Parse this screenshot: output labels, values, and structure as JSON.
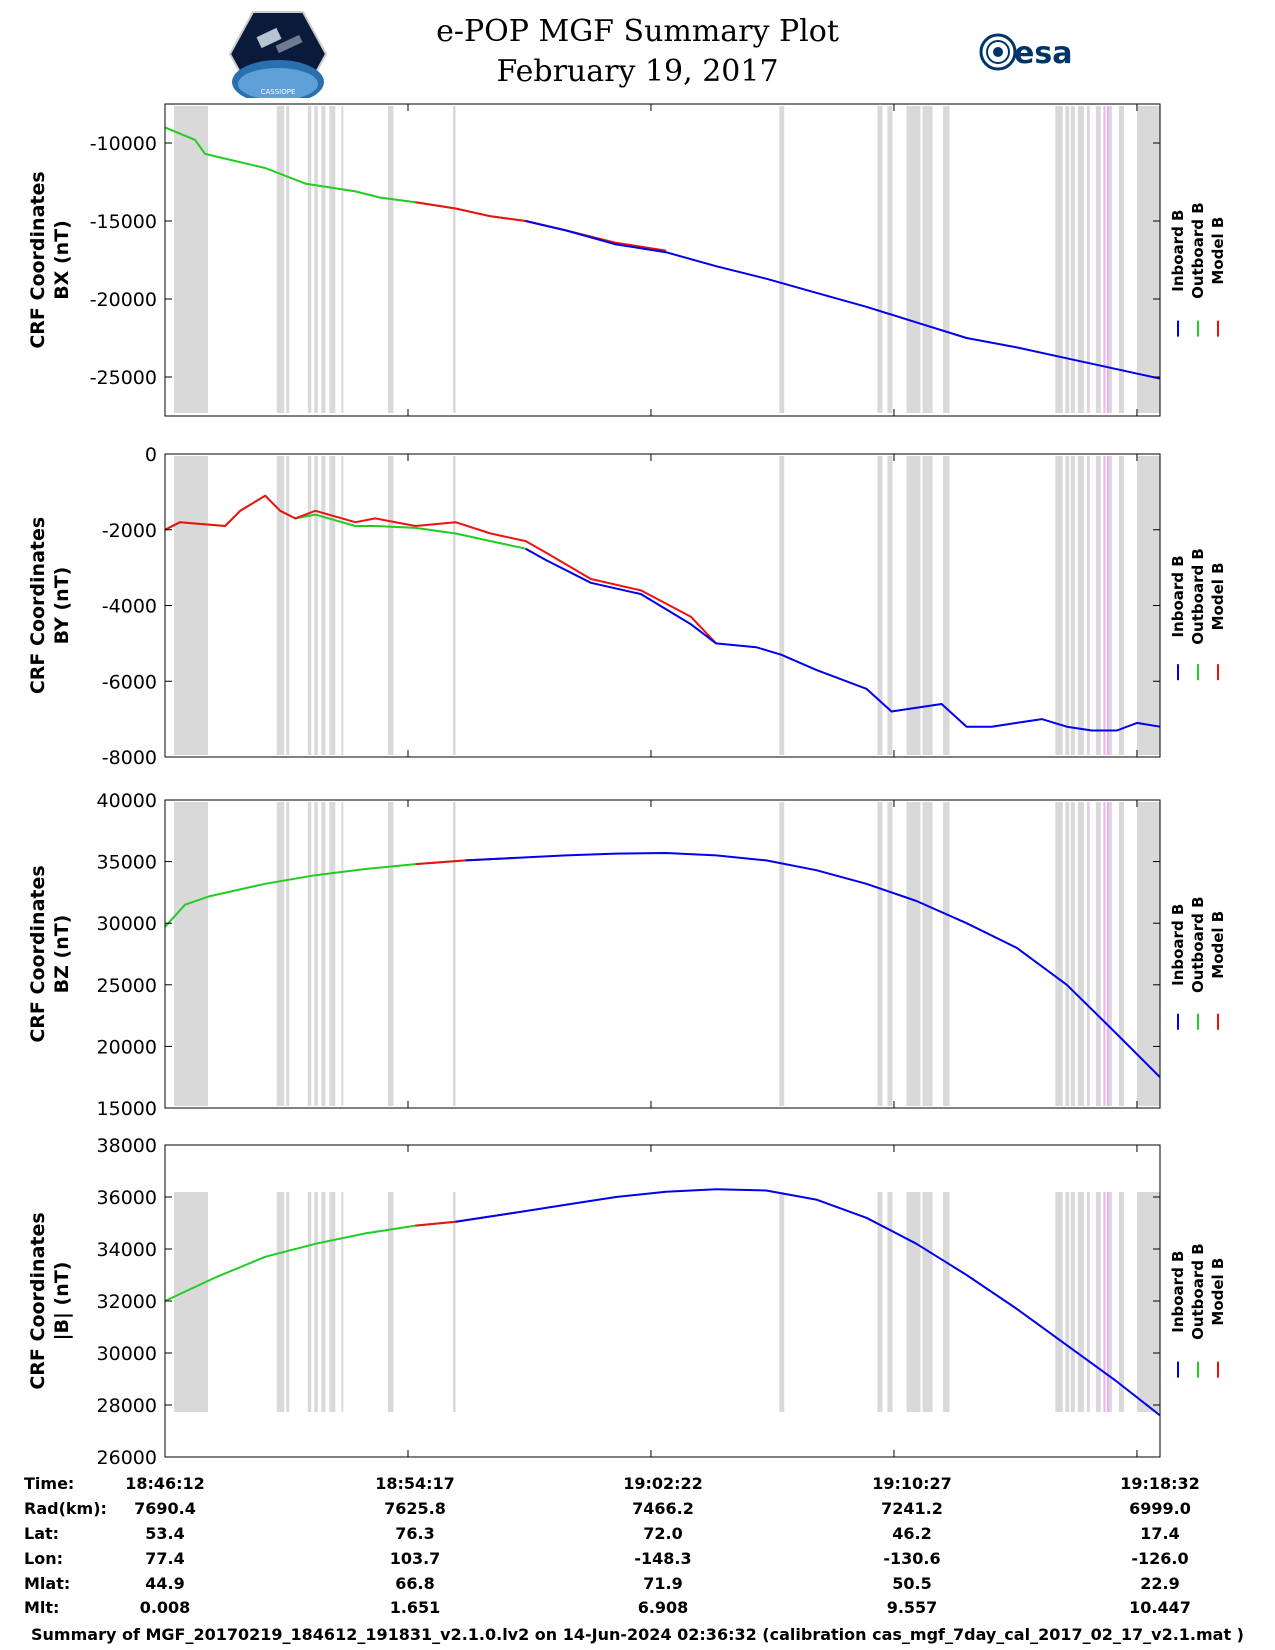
{
  "header": {
    "title": "e-POP MGF Summary Plot",
    "date": "February 19, 2017",
    "logo_left": "CASSIOPE",
    "logo_right": "esa"
  },
  "colors": {
    "inboard": "#0000ee",
    "outboard": "#22cc22",
    "model": "#ee1111",
    "gap_shading": "#d9d9d9",
    "pink_marker": "#f0b0f0"
  },
  "chart_data": [
    {
      "type": "line",
      "name": "BX",
      "ylabel_line1": "CRF Coordinates",
      "ylabel_line2": "BX (nT)",
      "ylim": [
        -27500,
        -7500
      ],
      "yticks": [
        -10000,
        -15000,
        -20000,
        -25000
      ],
      "ytick_labels": [
        "-10000",
        "-15000",
        "-20000",
        "-25000"
      ],
      "x_range_seconds": [
        0,
        1986
      ],
      "series": [
        {
          "name": "Outboard B",
          "x": [
            0,
            60,
            80,
            120,
            200,
            280,
            380,
            430,
            500,
            580,
            650,
            720
          ],
          "y": [
            -9000,
            -9800,
            -10700,
            -11000,
            -11600,
            -12600,
            -13100,
            -13500,
            -13800,
            -14200,
            -14700,
            -15000
          ]
        },
        {
          "name": "Model B",
          "x": [
            500,
            580,
            650,
            720,
            800,
            900,
            1000
          ],
          "y": [
            -13800,
            -14200,
            -14700,
            -15000,
            -15600,
            -16400,
            -16900
          ]
        },
        {
          "name": "Inboard B",
          "x": [
            720,
            800,
            900,
            1000,
            1100,
            1200,
            1300,
            1400,
            1500,
            1600,
            1700,
            1800,
            1900,
            1986
          ],
          "y": [
            -15000,
            -15600,
            -16500,
            -17000,
            -17900,
            -18700,
            -19600,
            -20500,
            -21500,
            -22500,
            -23100,
            -23800,
            -24500,
            -25100
          ]
        }
      ]
    },
    {
      "type": "line",
      "name": "BY",
      "ylabel_line1": "CRF Coordinates",
      "ylabel_line2": "BY (nT)",
      "ylim": [
        -8000,
        0
      ],
      "yticks": [
        0,
        -2000,
        -4000,
        -6000,
        -8000
      ],
      "ytick_labels": [
        "0",
        "-2000",
        "-4000",
        "-6000",
        "-8000"
      ],
      "x_range_seconds": [
        0,
        1986
      ],
      "series": [
        {
          "name": "Outboard B",
          "x": [
            0,
            30,
            120,
            150,
            200,
            230,
            260,
            300,
            380,
            420,
            500,
            580,
            650,
            720
          ],
          "y": [
            -2000,
            -1800,
            -1900,
            -1500,
            -1100,
            -1500,
            -1700,
            -1600,
            -1900,
            -1900,
            -1950,
            -2100,
            -2300,
            -2500
          ]
        },
        {
          "name": "Model B",
          "x": [
            0,
            30,
            120,
            150,
            200,
            230,
            260,
            300,
            380,
            420,
            500,
            580,
            650,
            720,
            760,
            850,
            950,
            1050,
            1100
          ],
          "y": [
            -2000,
            -1800,
            -1900,
            -1500,
            -1100,
            -1500,
            -1700,
            -1500,
            -1800,
            -1700,
            -1900,
            -1800,
            -2100,
            -2300,
            -2600,
            -3300,
            -3600,
            -4300,
            -5000
          ]
        },
        {
          "name": "Inboard B",
          "x": [
            720,
            760,
            850,
            950,
            1050,
            1100,
            1180,
            1230,
            1300,
            1400,
            1450,
            1500,
            1550,
            1600,
            1650,
            1700,
            1750,
            1800,
            1850,
            1900,
            1940,
            1986
          ],
          "y": [
            -2500,
            -2800,
            -3400,
            -3700,
            -4500,
            -5000,
            -5100,
            -5300,
            -5700,
            -6200,
            -6800,
            -6700,
            -6600,
            -7200,
            -7200,
            -7100,
            -7000,
            -7200,
            -7300,
            -7300,
            -7100,
            -7200
          ]
        }
      ]
    },
    {
      "type": "line",
      "name": "BZ",
      "ylabel_line1": "CRF Coordinates",
      "ylabel_line2": "BZ (nT)",
      "ylim": [
        15000,
        40000
      ],
      "yticks": [
        40000,
        35000,
        30000,
        25000,
        20000,
        15000
      ],
      "ytick_labels": [
        "40000",
        "35000",
        "30000",
        "25000",
        "20000",
        "15000"
      ],
      "x_range_seconds": [
        0,
        1986
      ],
      "series": [
        {
          "name": "Outboard B",
          "x": [
            0,
            40,
            90,
            200,
            300,
            400,
            500,
            600
          ],
          "y": [
            29700,
            31500,
            32200,
            33200,
            33900,
            34400,
            34800,
            35100
          ]
        },
        {
          "name": "Model B",
          "x": [
            500,
            600,
            700
          ],
          "y": [
            34800,
            35100,
            35300
          ]
        },
        {
          "name": "Inboard B",
          "x": [
            600,
            700,
            800,
            900,
            1000,
            1100,
            1200,
            1300,
            1400,
            1500,
            1600,
            1700,
            1800,
            1900,
            1986
          ],
          "y": [
            35100,
            35300,
            35500,
            35650,
            35700,
            35500,
            35100,
            34300,
            33200,
            31800,
            30000,
            28000,
            25000,
            21000,
            17500
          ]
        }
      ]
    },
    {
      "type": "line",
      "name": "|B|",
      "ylabel_line1": "CRF Coordinates",
      "ylabel_line2": "|B| (nT)",
      "ylim": [
        26000,
        38000
      ],
      "yticks": [
        38000,
        36000,
        34000,
        32000,
        30000,
        28000,
        26000
      ],
      "ytick_labels": [
        "38000",
        "36000",
        "34000",
        "32000",
        "30000",
        "28000",
        "26000"
      ],
      "x_range_seconds": [
        0,
        1986
      ],
      "series": [
        {
          "name": "Outboard B",
          "x": [
            0,
            100,
            200,
            300,
            400,
            500,
            580
          ],
          "y": [
            32000,
            32900,
            33700,
            34200,
            34600,
            34900,
            35050
          ]
        },
        {
          "name": "Model B",
          "x": [
            500,
            580,
            700
          ],
          "y": [
            34900,
            35050,
            35400
          ]
        },
        {
          "name": "Inboard B",
          "x": [
            580,
            700,
            800,
            900,
            1000,
            1100,
            1200,
            1300,
            1400,
            1500,
            1600,
            1700,
            1800,
            1900,
            1986
          ],
          "y": [
            35050,
            35400,
            35700,
            36000,
            36200,
            36300,
            36250,
            35900,
            35200,
            34200,
            33000,
            31700,
            30300,
            28900,
            27600
          ]
        }
      ]
    }
  ],
  "gaps_seconds": [
    [
      18,
      86
    ],
    [
      223,
      238
    ],
    [
      242,
      248
    ],
    [
      285,
      292
    ],
    [
      298,
      305
    ],
    [
      312,
      320
    ],
    [
      328,
      340
    ],
    [
      352,
      355
    ],
    [
      445,
      456
    ],
    [
      575,
      580
    ],
    [
      1226,
      1236
    ],
    [
      1422,
      1432
    ],
    [
      1442,
      1452
    ],
    [
      1480,
      1508
    ],
    [
      1512,
      1532
    ],
    [
      1553,
      1566
    ],
    [
      1777,
      1792
    ],
    [
      1797,
      1805
    ],
    [
      1808,
      1816
    ],
    [
      1822,
      1834
    ],
    [
      1840,
      1846
    ],
    [
      1858,
      1868
    ],
    [
      1880,
      1890
    ],
    [
      1904,
      1914
    ],
    [
      1940,
      1986
    ]
  ],
  "pink_markers_seconds": [
    1873,
    1880
  ],
  "legend": {
    "inboard": "Inboard B",
    "outboard": "Outboard B",
    "model": "Model B"
  },
  "footer": {
    "row_labels": [
      "Time:",
      "Rad(km):",
      "Lat:",
      "Lon:",
      "Mlat:",
      "Mlt:"
    ],
    "columns": [
      {
        "time": "18:46:12",
        "rad": "7690.4",
        "lat": "53.4",
        "lon": "77.4",
        "mlat": "44.9",
        "mlt": "0.008"
      },
      {
        "time": "18:54:17",
        "rad": "7625.8",
        "lat": "76.3",
        "lon": "103.7",
        "mlat": "66.8",
        "mlt": "1.651"
      },
      {
        "time": "19:02:22",
        "rad": "7466.2",
        "lat": "72.0",
        "lon": "-148.3",
        "mlat": "71.9",
        "mlt": "6.908"
      },
      {
        "time": "19:10:27",
        "rad": "7241.2",
        "lat": "46.2",
        "lon": "-130.6",
        "mlat": "50.5",
        "mlt": "9.557"
      },
      {
        "time": "19:18:32",
        "rad": "6999.0",
        "lat": "17.4",
        "lon": "-126.0",
        "mlat": "22.9",
        "mlt": "10.447"
      }
    ],
    "caption": "Summary of MGF_20170219_184612_191831_v2.1.0.lv2 on 14-Jun-2024 02:36:32 (calibration cas_mgf_7day_cal_2017_02_17_v2.1.mat )"
  }
}
